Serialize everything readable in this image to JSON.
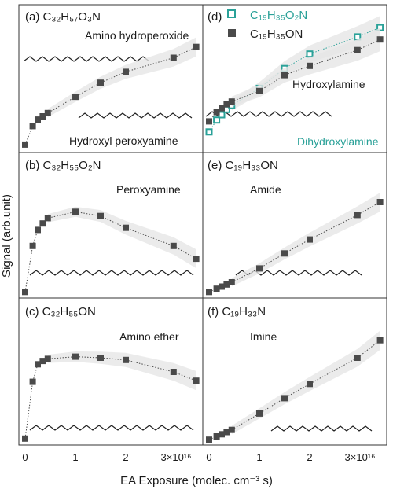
{
  "colors": {
    "series_main": "#4a4a4a",
    "series_o2": "#2aa198",
    "band": "#e6e6e6",
    "label_teal": "#2aa198"
  },
  "xlabel": "EA Exposure (molec. cm⁻³ s)",
  "ylabel": "Signal (arb.unit)",
  "x_ticks": [
    "0",
    "1",
    "2",
    "3×10¹⁶"
  ],
  "legend": [
    {
      "label": "C₁₉H₃₅O₂N",
      "marker": "open-square",
      "color": "#2aa198"
    },
    {
      "label": "C₁₉H₃₅ON",
      "marker": "filled-square",
      "color": "#4a4a4a"
    }
  ],
  "chart_data": [
    {
      "panel": "(a)",
      "formula": "C₃₂H₅₇O₃N",
      "type": "scatter",
      "annotations": [
        "Amino hydroperoxide",
        "Hydroxyl peroxyamine"
      ],
      "xlim": [
        0,
        3.6
      ],
      "ylim": [
        0,
        1.0
      ],
      "series": [
        {
          "x": [
            0,
            0.15,
            0.25,
            0.35,
            0.45,
            1.0,
            1.5,
            2.0,
            2.95,
            3.4
          ],
          "y": [
            0.03,
            0.2,
            0.26,
            0.29,
            0.32,
            0.47,
            0.6,
            0.7,
            0.83,
            0.93
          ]
        }
      ]
    },
    {
      "panel": "(b)",
      "formula": "C₃₂H₅₅O₂N",
      "type": "scatter",
      "annotations": [
        "Peroxyamine"
      ],
      "xlim": [
        0,
        3.6
      ],
      "ylim": [
        0,
        1.0
      ],
      "series": [
        {
          "x": [
            0,
            0.15,
            0.25,
            0.35,
            0.45,
            1.0,
            1.5,
            2.0,
            2.95,
            3.4
          ],
          "y": [
            0.02,
            0.45,
            0.6,
            0.66,
            0.71,
            0.77,
            0.73,
            0.62,
            0.45,
            0.33
          ]
        }
      ]
    },
    {
      "panel": "(c)",
      "formula": "C₃₂H₅₅ON",
      "type": "scatter",
      "annotations": [
        "Amino ether"
      ],
      "xlim": [
        0,
        3.6
      ],
      "ylim": [
        0,
        1.0
      ],
      "series": [
        {
          "x": [
            0,
            0.15,
            0.25,
            0.35,
            0.45,
            1.0,
            1.5,
            2.0,
            2.95,
            3.4
          ],
          "y": [
            0.03,
            0.55,
            0.71,
            0.74,
            0.76,
            0.78,
            0.77,
            0.75,
            0.64,
            0.56
          ]
        }
      ]
    },
    {
      "panel": "(d)",
      "formula": "",
      "type": "scatter",
      "annotations": [
        "Hydroxylamine",
        "Dihydroxylamine"
      ],
      "xlim": [
        0,
        3.6
      ],
      "ylim": [
        0,
        1.0
      ],
      "series": [
        {
          "name": "C₁₉H₃₅O₂N",
          "marker": "open-square",
          "x": [
            0,
            0.15,
            0.25,
            0.35,
            0.45,
            1.0,
            1.5,
            2.0,
            2.95,
            3.4
          ],
          "y": [
            0.12,
            0.21,
            0.25,
            0.29,
            0.32,
            0.45,
            0.6,
            0.71,
            0.84,
            0.91
          ]
        },
        {
          "name": "C₁₉H₃₅ON",
          "marker": "filled-square",
          "x": [
            0,
            0.15,
            0.25,
            0.35,
            0.45,
            1.0,
            1.5,
            2.0,
            2.95,
            3.4
          ],
          "y": [
            0.2,
            0.27,
            0.3,
            0.33,
            0.35,
            0.43,
            0.55,
            0.62,
            0.74,
            0.82
          ]
        }
      ]
    },
    {
      "panel": "(e)",
      "formula": "C₁₉H₃₃ON",
      "type": "scatter",
      "annotations": [
        "Amide"
      ],
      "xlim": [
        0,
        3.6
      ],
      "ylim": [
        0,
        1.0
      ],
      "series": [
        {
          "x": [
            0,
            0.15,
            0.25,
            0.35,
            0.45,
            1.0,
            1.5,
            2.0,
            2.95,
            3.4
          ],
          "y": [
            0.02,
            0.05,
            0.07,
            0.09,
            0.11,
            0.24,
            0.38,
            0.51,
            0.74,
            0.86
          ]
        }
      ]
    },
    {
      "panel": "(f)",
      "formula": "C₁₉H₃₃N",
      "type": "scatter",
      "annotations": [
        "Imine"
      ],
      "xlim": [
        0,
        3.6
      ],
      "ylim": [
        0,
        1.0
      ],
      "series": [
        {
          "x": [
            0,
            0.15,
            0.25,
            0.35,
            0.45,
            1.0,
            1.5,
            2.0,
            2.95,
            3.4
          ],
          "y": [
            0.02,
            0.05,
            0.07,
            0.09,
            0.11,
            0.26,
            0.4,
            0.53,
            0.77,
            0.93
          ]
        }
      ]
    }
  ]
}
